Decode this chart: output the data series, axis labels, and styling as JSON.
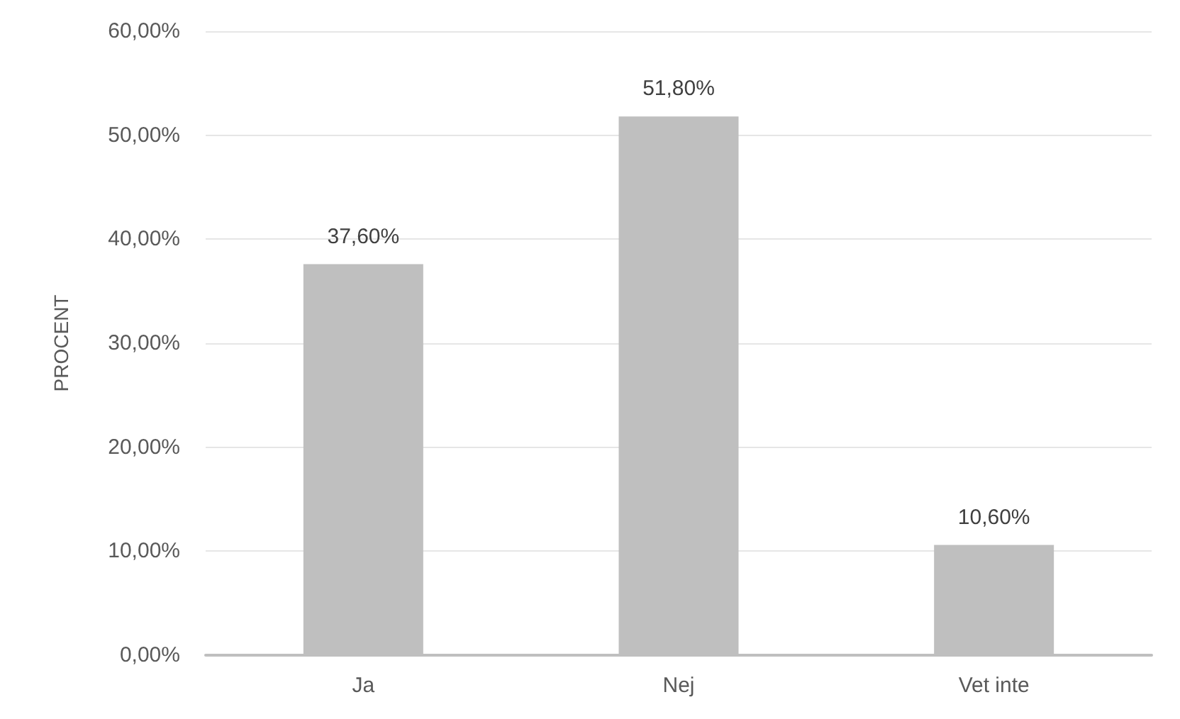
{
  "chart_data": {
    "type": "bar",
    "ylabel": "PROCENT",
    "categories": [
      "Ja",
      "Nej",
      "Vet inte"
    ],
    "values": [
      37.6,
      51.8,
      10.6
    ],
    "value_labels": [
      "37,60%",
      "51,80%",
      "10,60%"
    ],
    "color": "#bfbfbf",
    "ylim": [
      0,
      60
    ],
    "yticks": [
      {
        "value": 0,
        "label": "0,00%"
      },
      {
        "value": 10,
        "label": "10,00%"
      },
      {
        "value": 20,
        "label": "20,00%"
      },
      {
        "value": 30,
        "label": "30,00%"
      },
      {
        "value": 40,
        "label": "40,00%"
      },
      {
        "value": 50,
        "label": "50,00%"
      },
      {
        "value": 60,
        "label": "60,00%"
      }
    ],
    "grid": "y"
  }
}
